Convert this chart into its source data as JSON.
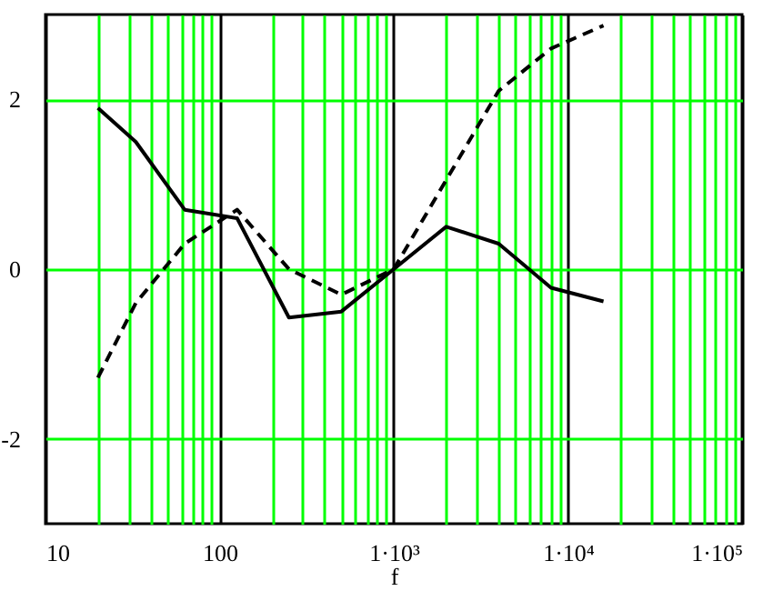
{
  "chart_data": {
    "type": "line",
    "xlabel": "f",
    "log": "x",
    "grid": true,
    "xlim": [
      10,
      100000
    ],
    "ylim": [
      -3,
      3
    ],
    "yticks": [
      -2,
      0,
      2
    ],
    "xticks": [
      10,
      {
        "value": 20,
        "label": null
      },
      {
        "value": 30,
        "label": null
      },
      {
        "value": 40,
        "label": null
      },
      {
        "value": 50,
        "label": null
      },
      {
        "value": 60,
        "label": null
      },
      {
        "value": 70,
        "label": null
      },
      {
        "value": 80,
        "label": null
      },
      {
        "value": 90,
        "label": null
      },
      100,
      {
        "value": 200,
        "label": null
      },
      {
        "value": 300,
        "label": null
      },
      {
        "value": 400,
        "label": null
      },
      {
        "value": 500,
        "label": null
      },
      {
        "value": 600,
        "label": null
      },
      {
        "value": 700,
        "label": null
      },
      {
        "value": 800,
        "label": null
      },
      {
        "value": 900,
        "label": null
      },
      {
        "value": 1000,
        "label": "1·10³"
      },
      {
        "value": 2000,
        "label": null
      },
      {
        "value": 3000,
        "label": null
      },
      {
        "value": 4000,
        "label": null
      },
      {
        "value": 5000,
        "label": null
      },
      {
        "value": 6000,
        "label": null
      },
      {
        "value": 7000,
        "label": null
      },
      {
        "value": 8000,
        "label": null
      },
      {
        "value": 9000,
        "label": null
      },
      {
        "value": 10000,
        "label": "1·10⁴"
      },
      {
        "value": 20000,
        "label": null
      },
      {
        "value": 30000,
        "label": null
      },
      {
        "value": 40000,
        "label": null
      },
      {
        "value": 50000,
        "label": null
      },
      {
        "value": 60000,
        "label": null
      },
      {
        "value": 70000,
        "label": null
      },
      {
        "value": 80000,
        "label": null
      },
      {
        "value": 90000,
        "label": null
      },
      {
        "value": 100000,
        "label": "1·10⁵"
      }
    ],
    "x": [
      20,
      33,
      63,
      126,
      250,
      500,
      1000,
      2000,
      4000,
      8000,
      16000
    ],
    "series": [
      {
        "color": "#000000",
        "line_style": "solid",
        "values": [
          1.9,
          1.5,
          0.7,
          0.6,
          -0.57,
          -0.5,
          0,
          0.5,
          0.3,
          -0.22,
          -0.38
        ]
      },
      {
        "color": "#000000",
        "line_style": "dashed",
        "values": [
          -1.28,
          -0.4,
          0.3,
          0.7,
          0,
          -0.3,
          0,
          1.05,
          2.1,
          2.6,
          2.87
        ]
      }
    ]
  }
}
